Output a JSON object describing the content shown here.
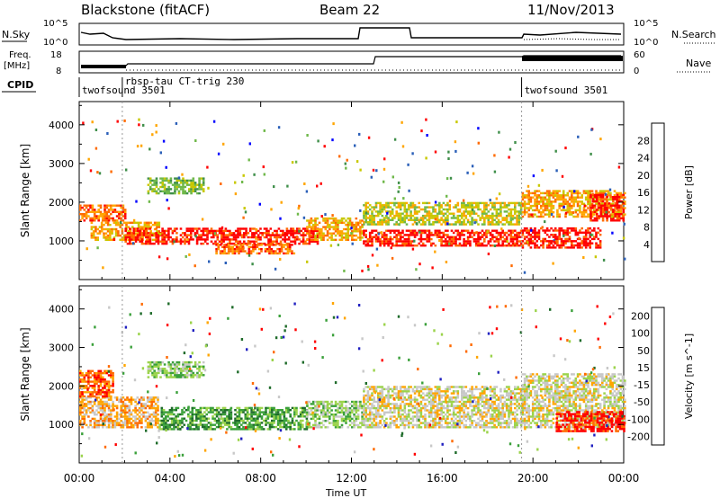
{
  "header": {
    "station": "Blackstone (fitACF)",
    "beam": "Beam 22",
    "date": "11/Nov/2013"
  },
  "strip_labels": {
    "nsky": "N.Sky",
    "nsearch": "N.Search",
    "freq_line1": "Freq.",
    "freq_line2": "[MHz]",
    "nave": "Nave",
    "cpid": "CPID",
    "nsky_ticks": [
      "10^5",
      "10^0"
    ],
    "nsearch_ticks": [
      "10^5",
      "10^0"
    ],
    "freq_ticks": [
      "18",
      "8"
    ],
    "nave_ticks": [
      "60",
      "0"
    ]
  },
  "cpid_segments": [
    {
      "start_hr": 0,
      "label": "twofsound 3501"
    },
    {
      "start_hr": 1.9,
      "label": "rbsp-tau CT-trig 230"
    },
    {
      "start_hr": 19.5,
      "label": "twofsound 3501"
    }
  ],
  "chart_data": [
    {
      "type": "heatmap",
      "title": "",
      "xlabel": "Time UT",
      "ylabel": "Slant Range [km]",
      "xticks": [
        "00:00",
        "04:00",
        "08:00",
        "12:00",
        "16:00",
        "20:00",
        "00:00"
      ],
      "yticks": [
        "1000",
        "2000",
        "3000",
        "4000"
      ],
      "ylim": [
        0,
        4600
      ],
      "colorbar_label": "Power [dB]",
      "colorbar_ticks": [
        "4",
        "8",
        "12",
        "16",
        "20",
        "24",
        "28"
      ],
      "colors": [
        "#0000ff",
        "#2a5fb8",
        "#3f8f4a",
        "#6fb84a",
        "#c8c800",
        "#ffa500",
        "#ff6a00",
        "#ff0000"
      ],
      "bands": [
        {
          "t0": 0.0,
          "t1": 2.0,
          "r0": 1500,
          "r1": 1900,
          "level": 6
        },
        {
          "t0": 0.5,
          "t1": 3.5,
          "r0": 1000,
          "r1": 1450,
          "level": 5
        },
        {
          "t0": 2.0,
          "t1": 10.5,
          "r0": 900,
          "r1": 1300,
          "level": 7
        },
        {
          "t0": 6.0,
          "t1": 9.5,
          "r0": 650,
          "r1": 900,
          "level": 6
        },
        {
          "t0": 3.0,
          "t1": 5.5,
          "r0": 2200,
          "r1": 2600,
          "level": 3
        },
        {
          "t0": 10.0,
          "t1": 12.5,
          "r0": 1000,
          "r1": 1600,
          "level": 5
        },
        {
          "t0": 12.5,
          "t1": 19.5,
          "r0": 850,
          "r1": 1250,
          "level": 7
        },
        {
          "t0": 12.5,
          "t1": 19.5,
          "r0": 1400,
          "r1": 2000,
          "level": 4
        },
        {
          "t0": 19.5,
          "t1": 23.0,
          "r0": 800,
          "r1": 1300,
          "level": 7
        },
        {
          "t0": 19.5,
          "t1": 24.0,
          "r0": 1600,
          "r1": 2300,
          "level": 5
        },
        {
          "t0": 22.5,
          "t1": 24.0,
          "r0": 1500,
          "r1": 2200,
          "level": 7
        }
      ]
    },
    {
      "type": "heatmap",
      "title": "",
      "xlabel": "Time UT",
      "ylabel": "Slant Range [km]",
      "xticks": [
        "00:00",
        "04:00",
        "08:00",
        "12:00",
        "16:00",
        "20:00",
        "00:00"
      ],
      "yticks": [
        "1000",
        "2000",
        "3000",
        "4000"
      ],
      "ylim": [
        0,
        4600
      ],
      "colorbar_label": "Velocity [m s^-1]",
      "colorbar_ticks": [
        "200",
        "100",
        "50",
        "15",
        "-15",
        "-50",
        "-100",
        "-200"
      ],
      "colors": [
        "#2020c0",
        "#1e6b2a",
        "#3aa03a",
        "#9bd34b",
        "#c8c8c8",
        "#ffa500",
        "#ff6a00",
        "#ff0000"
      ],
      "bands": [
        {
          "t0": 0.0,
          "t1": 3.5,
          "r0": 900,
          "r1": 1700,
          "level": 5
        },
        {
          "t0": 3.5,
          "t1": 10.0,
          "r0": 850,
          "r1": 1450,
          "level": 2
        },
        {
          "t0": 3.0,
          "t1": 5.5,
          "r0": 2200,
          "r1": 2600,
          "level": 3
        },
        {
          "t0": 10.0,
          "t1": 12.5,
          "r0": 900,
          "r1": 1600,
          "level": 3
        },
        {
          "t0": 12.5,
          "t1": 19.5,
          "r0": 900,
          "r1": 2000,
          "level": 4
        },
        {
          "t0": 19.5,
          "t1": 24.0,
          "r0": 900,
          "r1": 2300,
          "level": 4
        },
        {
          "t0": 0.0,
          "t1": 1.5,
          "r0": 1700,
          "r1": 2400,
          "level": 6
        },
        {
          "t0": 21.0,
          "t1": 24.0,
          "r0": 800,
          "r1": 1300,
          "level": 7
        }
      ]
    }
  ]
}
